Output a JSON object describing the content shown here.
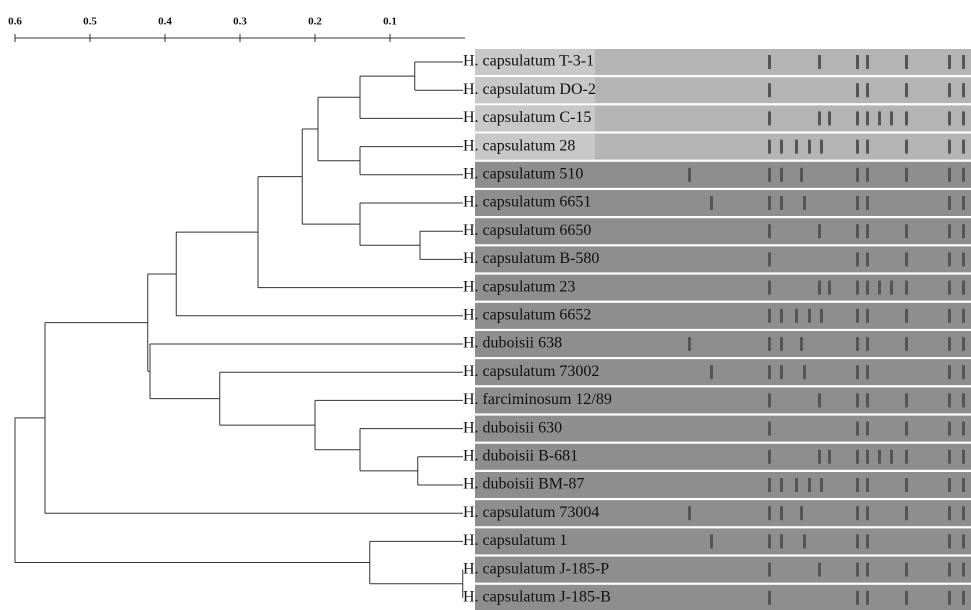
{
  "axis": {
    "ticks": [
      0.6,
      0.5,
      0.4,
      0.3,
      0.2,
      0.1
    ]
  },
  "tree": {
    "height": 0.6,
    "children": [
      {
        "height": 0.56,
        "children": [
          {
            "height": 0.423,
            "children": [
              {
                "height": 0.385,
                "children": [
                  {
                    "height": 0.276,
                    "children": [
                      {
                        "height": 0.217,
                        "children": [
                          {
                            "height": 0.196,
                            "children": [
                              {
                                "height": 0.14,
                                "children": [
                                  {
                                    "height": 0.067,
                                    "children": [
                                      {
                                        "label": "H. capsulatum T-3-1"
                                      },
                                      {
                                        "label": "H. capsulatum DO-2"
                                      }
                                    ]
                                  },
                                  {
                                    "label": "H. capsulatum C-15"
                                  }
                                ]
                              },
                              {
                                "height": 0.14,
                                "children": [
                                  {
                                    "label": "H. capsulatum 28"
                                  },
                                  {
                                    "label": "H. capsulatum 510"
                                  }
                                ]
                              }
                            ]
                          },
                          {
                            "height": 0.14,
                            "children": [
                              {
                                "label": "H. capsulatum 6651"
                              },
                              {
                                "height": 0.06,
                                "children": [
                                  {
                                    "label": "H. capsulatum 6650"
                                  },
                                  {
                                    "label": "H. capsulatum B-580"
                                  }
                                ]
                              }
                            ]
                          }
                        ]
                      },
                      {
                        "label": "H. capsulatum 23"
                      }
                    ]
                  },
                  {
                    "label": "H. capsulatum 6652"
                  }
                ]
              },
              {
                "height": 0.42,
                "children": [
                  {
                    "label": "H. duboisii 638"
                  },
                  {
                    "height": 0.327,
                    "children": [
                      {
                        "label": "H. capsulatum 73002"
                      },
                      {
                        "height": 0.2,
                        "children": [
                          {
                            "label": "H. farciminosum 12/89"
                          },
                          {
                            "height": 0.14,
                            "children": [
                              {
                                "label": "H. duboisii 630"
                              },
                              {
                                "height": 0.063,
                                "children": [
                                  {
                                    "label": "H. duboisii B-681"
                                  },
                                  {
                                    "label": "H. duboisii BM-87"
                                  }
                                ]
                              }
                            ]
                          }
                        ]
                      }
                    ]
                  }
                ]
              }
            ]
          },
          {
            "label": "H. capsulatum 73004"
          }
        ]
      },
      {
        "height": 0.127,
        "children": [
          {
            "label": "H. capsulatum 1"
          },
          {
            "height": 0.003,
            "children": [
              {
                "label": "H. capsulatum J-185-P"
              },
              {
                "label": "H. capsulatum J-185-B"
              }
            ]
          }
        ]
      }
    ]
  }
}
